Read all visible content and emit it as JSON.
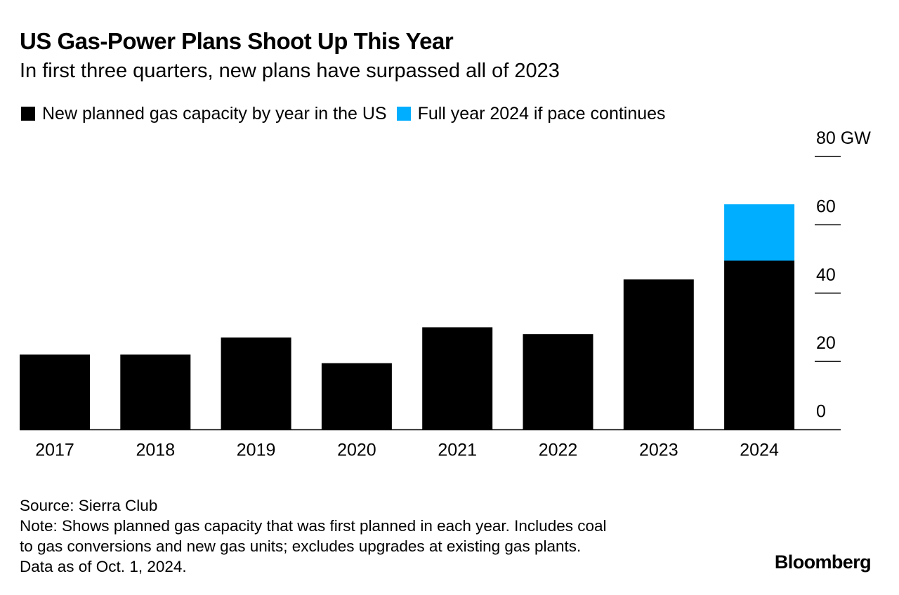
{
  "header": {
    "title": "US Gas-Power Plans Shoot Up This Year",
    "subtitle": "In first three quarters, new plans have surpassed all of 2023"
  },
  "legend": [
    {
      "label": "New planned gas capacity by year in the US",
      "color": "#000000"
    },
    {
      "label": "Full year 2024 if pace continues",
      "color": "#00aeff"
    }
  ],
  "chart_data": {
    "type": "bar",
    "stacked": true,
    "categories": [
      "2017",
      "2018",
      "2019",
      "2020",
      "2021",
      "2022",
      "2023",
      "2024"
    ],
    "series": [
      {
        "name": "New planned gas capacity by year in the US",
        "color": "#000000",
        "values": [
          22,
          22,
          27,
          19.5,
          30,
          28,
          44,
          49.5
        ]
      },
      {
        "name": "Full year 2024 if pace continues",
        "color": "#00aeff",
        "values": [
          0,
          0,
          0,
          0,
          0,
          0,
          0,
          16.5
        ]
      }
    ],
    "ylim": [
      0,
      80
    ],
    "yticks": [
      0,
      20,
      40,
      60,
      80
    ],
    "ytick_labels": [
      "0",
      "20",
      "40",
      "60",
      "80 GW"
    ],
    "y_axis_side": "right",
    "grid": false
  },
  "footer": {
    "source": "Source: Sierra Club",
    "note_lines": [
      "Note: Shows planned gas capacity that was first planned in each year. Includes coal",
      "to gas conversions and new gas units; excludes upgrades at existing gas plants.",
      "Data as of Oct. 1, 2024."
    ],
    "brand": "Bloomberg"
  }
}
